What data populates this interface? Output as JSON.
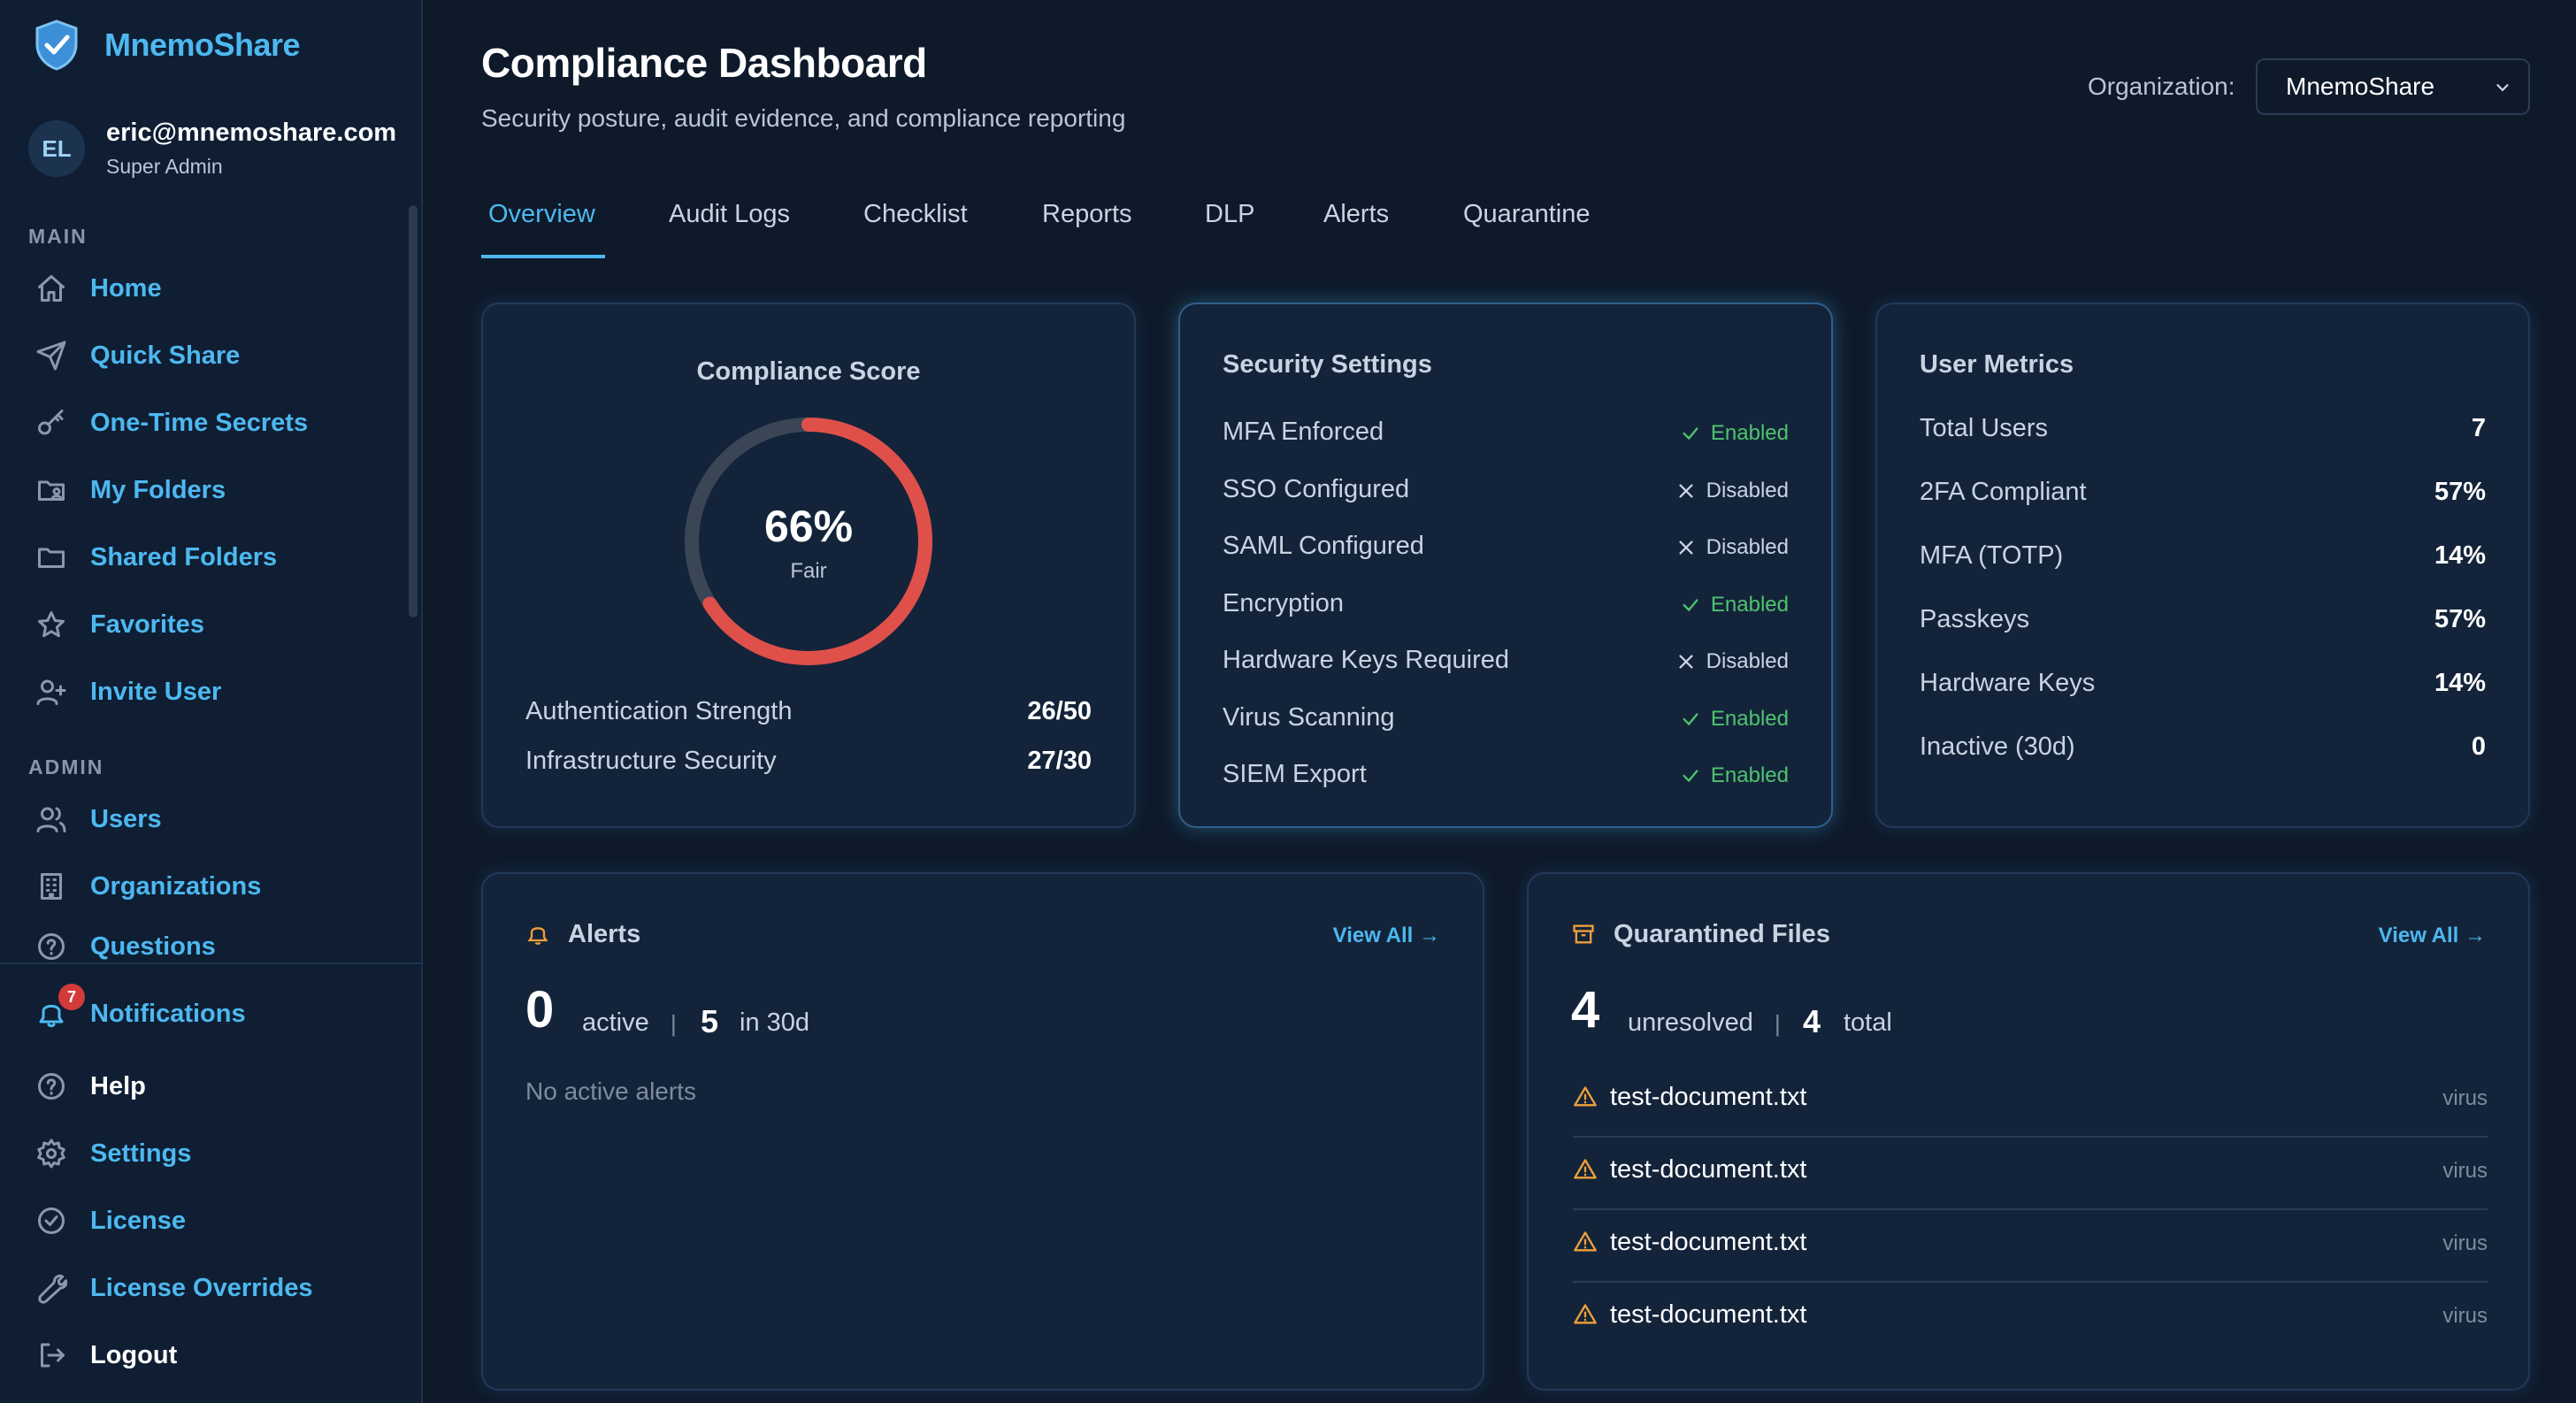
{
  "app": {
    "name": "MnemoShare"
  },
  "user": {
    "initials": "EL",
    "email": "eric@mnemoshare.com",
    "role": "Super Admin"
  },
  "sidebar": {
    "main_label": "MAIN",
    "admin_label": "ADMIN",
    "main_items": [
      {
        "label": "Home",
        "icon": "home-icon"
      },
      {
        "label": "Quick Share",
        "icon": "send-icon"
      },
      {
        "label": "One-Time Secrets",
        "icon": "key-icon"
      },
      {
        "label": "My Folders",
        "icon": "folder-user-icon"
      },
      {
        "label": "Shared Folders",
        "icon": "folder-icon"
      },
      {
        "label": "Favorites",
        "icon": "star-icon"
      },
      {
        "label": "Invite User",
        "icon": "user-plus-icon"
      }
    ],
    "admin_items": [
      {
        "label": "Users",
        "icon": "users-icon"
      },
      {
        "label": "Organizations",
        "icon": "building-icon"
      },
      {
        "label": "Questions",
        "icon": "help-circle-icon"
      }
    ],
    "bottom_items": [
      {
        "label": "Notifications",
        "icon": "bell-icon",
        "badge": "7"
      },
      {
        "label": "Help",
        "icon": "help-circle-icon"
      },
      {
        "label": "Settings",
        "icon": "gear-icon"
      },
      {
        "label": "License",
        "icon": "badge-check-icon"
      },
      {
        "label": "License Overrides",
        "icon": "wrench-icon"
      },
      {
        "label": "Logout",
        "icon": "logout-icon"
      }
    ]
  },
  "header": {
    "title": "Compliance Dashboard",
    "subtitle": "Security posture, audit evidence, and compliance reporting",
    "org_label": "Organization:",
    "org_value": "MnemoShare"
  },
  "tabs": [
    "Overview",
    "Audit Logs",
    "Checklist",
    "Reports",
    "DLP",
    "Alerts",
    "Quarantine"
  ],
  "compliance": {
    "title": "Compliance Score",
    "score": 66,
    "score_text": "66%",
    "rating": "Fair",
    "rows": [
      {
        "label": "Authentication Strength",
        "value": "26/50"
      },
      {
        "label": "Infrastructure Security",
        "value": "27/30"
      }
    ],
    "ring_color": "#e0504a"
  },
  "security": {
    "title": "Security Settings",
    "rows": [
      {
        "label": "MFA Enforced",
        "status": "Enabled",
        "on": true
      },
      {
        "label": "SSO Configured",
        "status": "Disabled",
        "on": false
      },
      {
        "label": "SAML Configured",
        "status": "Disabled",
        "on": false
      },
      {
        "label": "Encryption",
        "status": "Enabled",
        "on": true
      },
      {
        "label": "Hardware Keys Required",
        "status": "Disabled",
        "on": false
      },
      {
        "label": "Virus Scanning",
        "status": "Enabled",
        "on": true
      },
      {
        "label": "SIEM Export",
        "status": "Enabled",
        "on": true
      }
    ]
  },
  "metrics": {
    "title": "User Metrics",
    "rows": [
      {
        "label": "Total Users",
        "value": "7"
      },
      {
        "label": "2FA Compliant",
        "value": "57%"
      },
      {
        "label": "MFA (TOTP)",
        "value": "14%"
      },
      {
        "label": "Passkeys",
        "value": "57%"
      },
      {
        "label": "Hardware Keys",
        "value": "14%"
      },
      {
        "label": "Inactive (30d)",
        "value": "0"
      }
    ]
  },
  "alerts": {
    "title": "Alerts",
    "view_all": "View All →",
    "active_count": "0",
    "active_label": "active",
    "sep": "|",
    "recent_count": "5",
    "recent_label": "in 30d",
    "empty": "No active alerts"
  },
  "quarantine": {
    "title": "Quarantined Files",
    "view_all": "View All →",
    "unresolved_count": "4",
    "unresolved_label": "unresolved",
    "sep": "|",
    "total_count": "4",
    "total_label": "total",
    "files": [
      {
        "name": "test-document.txt",
        "reason": "virus"
      },
      {
        "name": "test-document.txt",
        "reason": "virus"
      },
      {
        "name": "test-document.txt",
        "reason": "virus"
      },
      {
        "name": "test-document.txt",
        "reason": "virus"
      }
    ]
  }
}
